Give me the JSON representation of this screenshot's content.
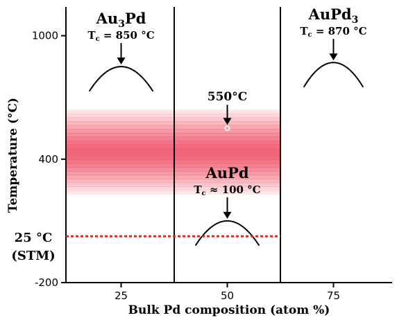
{
  "chart_data": {
    "type": "line",
    "xlabel": "Bulk Pd composition (atom %)",
    "ylabel": "Temperature (°C)",
    "xlim": [
      12,
      88
    ],
    "ylim": [
      -200,
      1140
    ],
    "x_ticks": [
      {
        "value": 25,
        "label": "25"
      },
      {
        "value": 50,
        "label": "50"
      },
      {
        "value": 75,
        "label": "75"
      }
    ],
    "y_ticks": [
      {
        "value": 1000,
        "label": "1000"
      },
      {
        "value": 400,
        "label": "400"
      },
      {
        "value": -200,
        "label": "-200"
      }
    ],
    "phase_boundaries": [
      37.5,
      62.5
    ],
    "band": {
      "low": 230,
      "high": 640,
      "color": "#ef5a6e"
    },
    "phases": [
      {
        "name_base": "Au",
        "name_sub1": "3",
        "name_mid": "Pd",
        "name_sub2": "",
        "tc_text": "T",
        "tc_sub": "c",
        "tc_value": " = 850 °C",
        "x_peak": 25,
        "tc": 850,
        "x_half_width": 7.5,
        "drop": 120
      },
      {
        "name_base": "AuPd",
        "name_sub1": "",
        "name_mid": "",
        "name_sub2": "3",
        "tc_text": "T",
        "tc_sub": "c",
        "tc_value": " = 870 °C",
        "x_peak": 75,
        "tc": 870,
        "x_half_width": 7,
        "drop": 120
      },
      {
        "name_base": "AuPd",
        "name_sub1": "",
        "name_mid": "",
        "name_sub2": "",
        "tc_text": "T",
        "tc_sub": "c",
        "tc_value": " ≈ 100 °C",
        "x_peak": 50,
        "tc": 100,
        "x_half_width": 7.5,
        "drop": 120
      }
    ],
    "point": {
      "x": 50,
      "y": 550,
      "label": "550°C"
    },
    "reference_line": {
      "y": 25,
      "label_line1": "25 °C",
      "label_line2": "(STM)",
      "color": "#e8241c"
    }
  }
}
